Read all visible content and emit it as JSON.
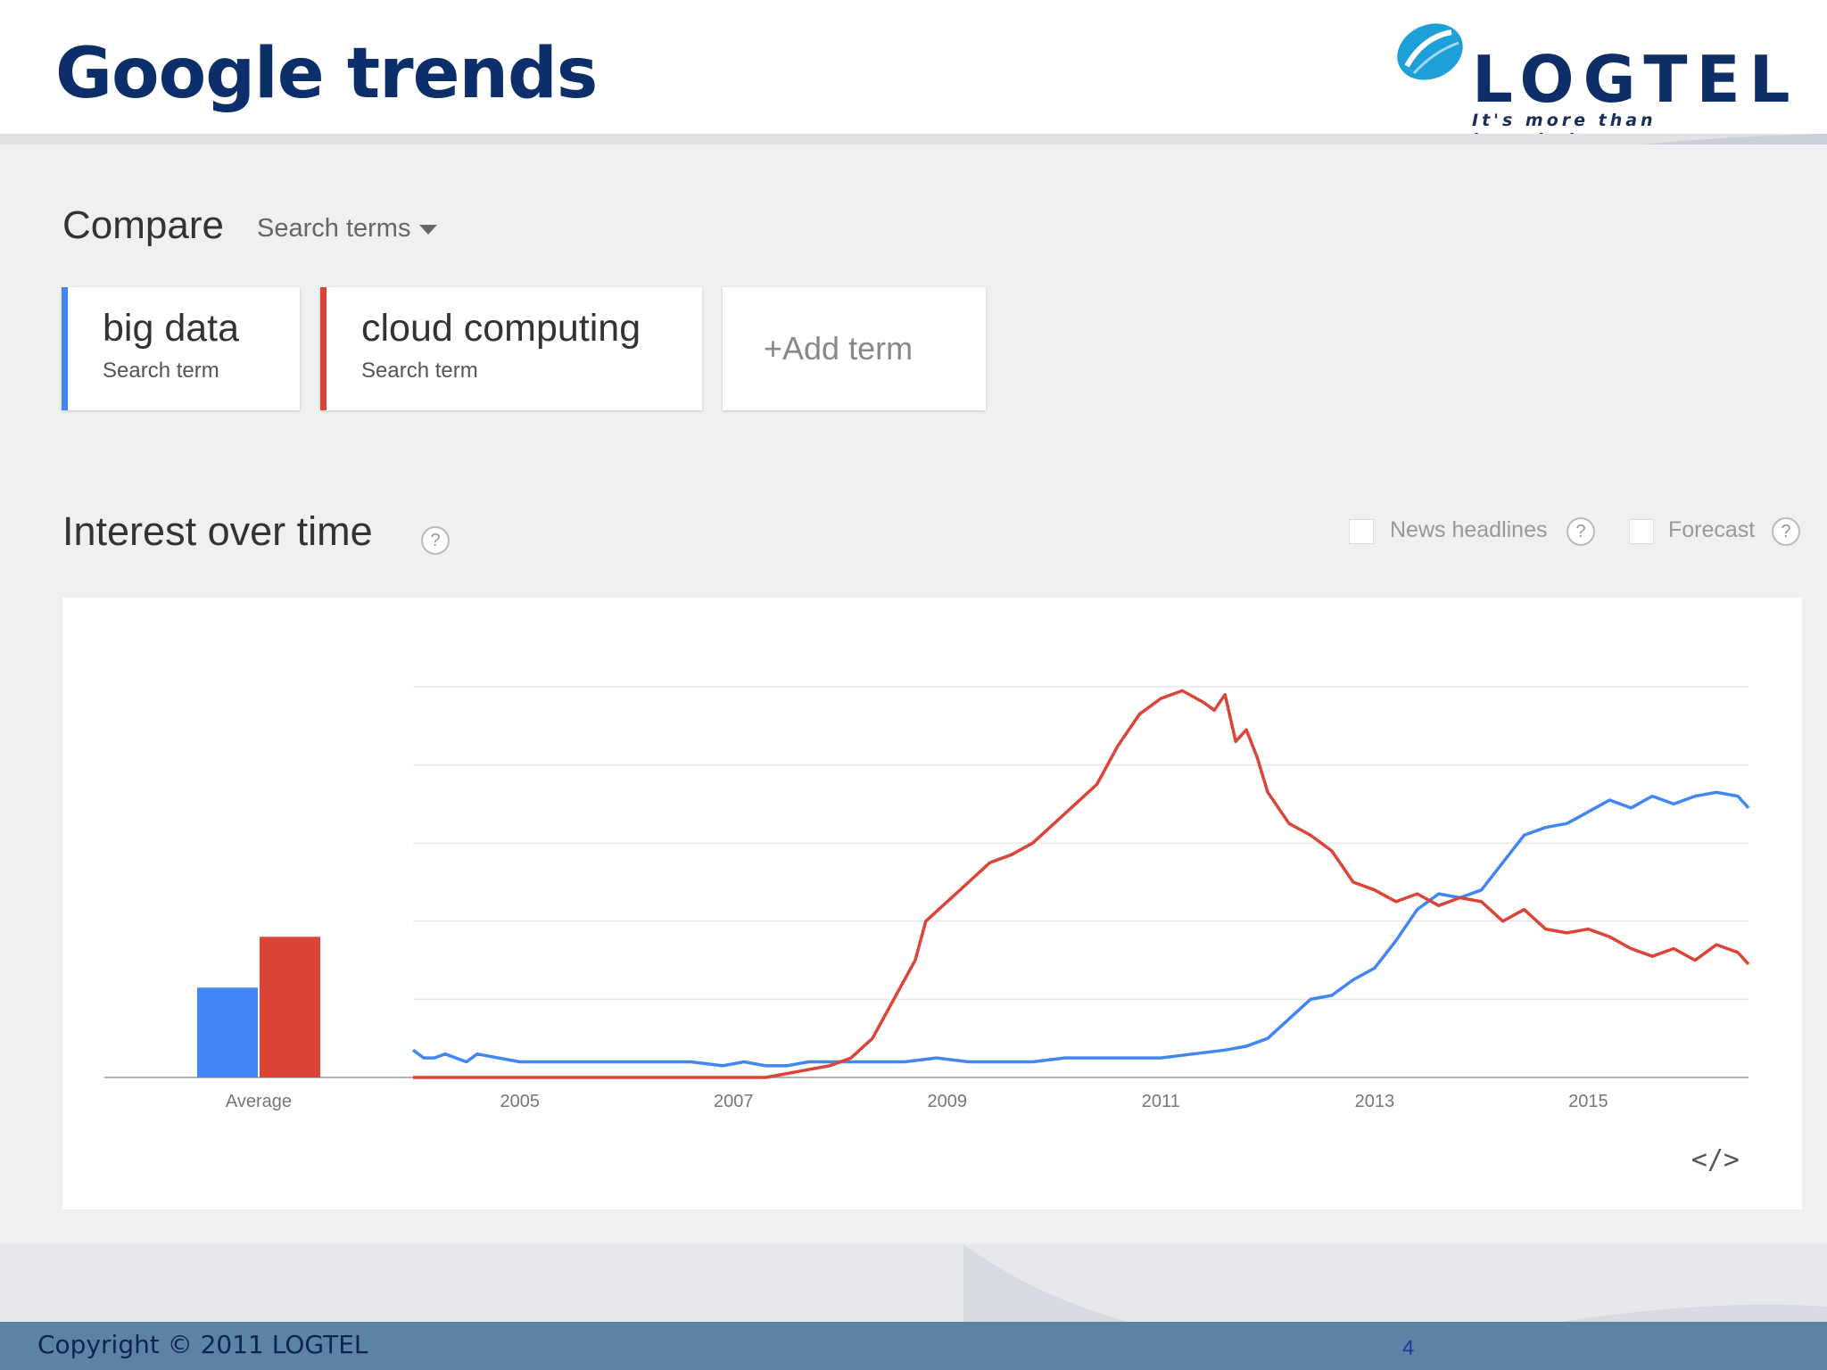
{
  "slide": {
    "title": "Google trends",
    "logo_text": "LOGTEL",
    "logo_tagline": "It's more than knowledge",
    "copyright": "Copyright © 2011 LOGTEL",
    "page_number": "4"
  },
  "compare": {
    "label": "Compare",
    "dropdown_label": "Search terms"
  },
  "terms": [
    {
      "name": "big data",
      "sub": "Search term",
      "color": "#4285f4"
    },
    {
      "name": "cloud computing",
      "sub": "Search term",
      "color": "#db4437"
    }
  ],
  "add_term": "+Add term",
  "interest": {
    "title": "Interest over time",
    "help": "?",
    "options": [
      {
        "label": "News headlines",
        "help": "?"
      },
      {
        "label": "Forecast",
        "help": "?"
      }
    ],
    "embed": "</>"
  },
  "chart_data": {
    "type": "line",
    "x_range": [
      2004.0,
      2016.5
    ],
    "ylim": [
      0,
      100
    ],
    "grid": true,
    "average_label": "Average",
    "averages": [
      23,
      36
    ],
    "tick_labels": [
      "2005",
      "2007",
      "2009",
      "2011",
      "2013",
      "2015"
    ],
    "tick_values": [
      2005,
      2007,
      2009,
      2011,
      2013,
      2015
    ],
    "series": [
      {
        "name": "big data",
        "color": "#4285f4",
        "x": [
          2004.0,
          2004.1,
          2004.2,
          2004.3,
          2004.4,
          2004.5,
          2004.6,
          2004.8,
          2005.0,
          2005.2,
          2005.5,
          2005.8,
          2006.0,
          2006.3,
          2006.6,
          2006.9,
          2007.1,
          2007.3,
          2007.5,
          2007.7,
          2008.0,
          2008.3,
          2008.6,
          2008.9,
          2009.2,
          2009.5,
          2009.8,
          2010.1,
          2010.4,
          2010.7,
          2011.0,
          2011.3,
          2011.6,
          2011.8,
          2012.0,
          2012.2,
          2012.4,
          2012.6,
          2012.8,
          2013.0,
          2013.2,
          2013.4,
          2013.6,
          2013.8,
          2014.0,
          2014.2,
          2014.4,
          2014.6,
          2014.8,
          2015.0,
          2015.2,
          2015.4,
          2015.6,
          2015.8,
          2016.0,
          2016.2,
          2016.4,
          2016.5
        ],
        "y": [
          7,
          5,
          5,
          6,
          5,
          4,
          6,
          5,
          4,
          4,
          4,
          4,
          4,
          4,
          4,
          3,
          4,
          3,
          3,
          4,
          4,
          4,
          4,
          5,
          4,
          4,
          4,
          5,
          5,
          5,
          5,
          6,
          7,
          8,
          10,
          15,
          20,
          21,
          25,
          28,
          35,
          43,
          47,
          46,
          48,
          55,
          62,
          64,
          65,
          68,
          71,
          69,
          72,
          70,
          72,
          73,
          72,
          69
        ]
      },
      {
        "name": "cloud computing",
        "color": "#db4437",
        "x": [
          2004.0,
          2004.5,
          2005.0,
          2005.5,
          2006.0,
          2006.5,
          2007.0,
          2007.3,
          2007.5,
          2007.7,
          2007.9,
          2008.1,
          2008.3,
          2008.5,
          2008.7,
          2008.8,
          2009.0,
          2009.2,
          2009.4,
          2009.6,
          2009.8,
          2010.0,
          2010.2,
          2010.4,
          2010.6,
          2010.8,
          2011.0,
          2011.2,
          2011.4,
          2011.5,
          2011.6,
          2011.7,
          2011.8,
          2011.9,
          2012.0,
          2012.2,
          2012.4,
          2012.6,
          2012.8,
          2013.0,
          2013.2,
          2013.4,
          2013.6,
          2013.8,
          2014.0,
          2014.2,
          2014.4,
          2014.6,
          2014.8,
          2015.0,
          2015.2,
          2015.4,
          2015.6,
          2015.8,
          2016.0,
          2016.2,
          2016.4,
          2016.5
        ],
        "y": [
          0,
          0,
          0,
          0,
          0,
          0,
          0,
          0,
          1,
          2,
          3,
          5,
          10,
          20,
          30,
          40,
          45,
          50,
          55,
          57,
          60,
          65,
          70,
          75,
          85,
          93,
          97,
          99,
          96,
          94,
          98,
          86,
          89,
          82,
          73,
          65,
          62,
          58,
          50,
          48,
          45,
          47,
          44,
          46,
          45,
          40,
          43,
          38,
          37,
          38,
          36,
          33,
          31,
          33,
          30,
          34,
          32,
          29
        ]
      }
    ]
  }
}
